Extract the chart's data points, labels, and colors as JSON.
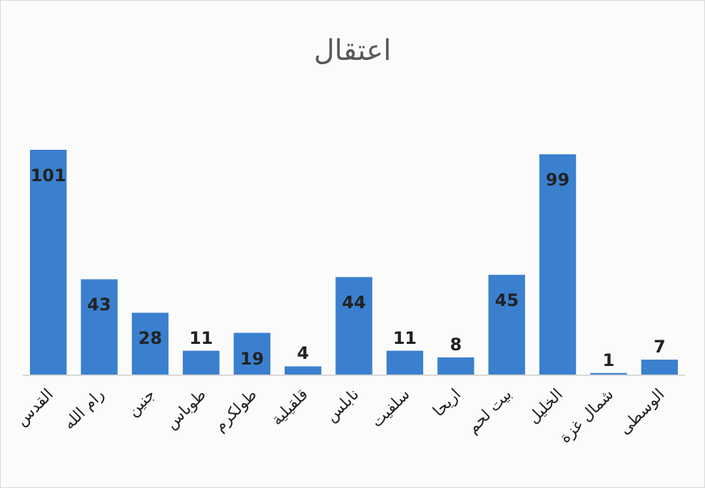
{
  "chart_data": {
    "type": "bar",
    "title": "اعتقال",
    "categories": [
      "القدس",
      "رام الله",
      "جنين",
      "طوباس",
      "طولكرم",
      "قلقيلية",
      "نابلس",
      "سلفيت",
      "اريحا",
      "بيت لحم",
      "الخليل",
      "شمال غزة",
      "الوسطى"
    ],
    "values": [
      101,
      43,
      28,
      11,
      19,
      4,
      44,
      11,
      8,
      45,
      99,
      1,
      7
    ],
    "color": "#3a80cf",
    "data_labels": true
  }
}
